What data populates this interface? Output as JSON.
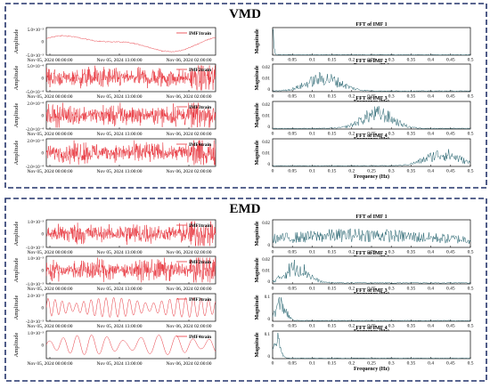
{
  "colors": {
    "frame": "#24346b",
    "signal": "#e8343c",
    "fft": "#1f5f6b",
    "axis": "#000000",
    "background": "#ffffff"
  },
  "sections": [
    {
      "title": "VMD",
      "subplots": [
        {
          "legend": "IMF1train",
          "exponent": "×10⁻³",
          "ytop": "5.0×10⁻³",
          "ymid": "0",
          "ybot": "-5.0×10⁻³",
          "fft_title": "FFT of IMF 1",
          "fft_yticks": []
        },
        {
          "legend": "IMF2train",
          "exponent": "",
          "ytop": "5.0×10⁻⁴",
          "ymid": "0",
          "ybot": "-5.0×10⁻⁴",
          "fft_title": "FFT of IMF 2",
          "fft_yticks": [
            "0.02",
            "0.01",
            "0"
          ]
        },
        {
          "legend": "IMF3train",
          "exponent": "",
          "ytop": "2.0×10⁻⁴",
          "ymid": "0",
          "ybot": "-2.0×10⁻⁴",
          "fft_title": "FFT of IMF 3",
          "fft_yticks": [
            "0.02",
            "0.01",
            "0"
          ]
        },
        {
          "legend": "IMF4train",
          "exponent": "",
          "ytop": "2.0×10⁻⁴",
          "ymid": "0",
          "ybot": "-2.0×10⁻⁴",
          "fft_title": "FFT of IMF 4",
          "fft_yticks": [
            "0.02",
            "0.01",
            "0"
          ]
        }
      ]
    },
    {
      "title": "EMD",
      "subplots": [
        {
          "legend": "IMF1train",
          "exponent": "",
          "ytop": "1.0×10⁻³",
          "ymid": "0",
          "ybot": "-1.0×10⁻³",
          "fft_title": "FFT of IMF 1",
          "fft_yticks": [
            "0.02",
            "0"
          ]
        },
        {
          "legend": "IMF2train",
          "exponent": "",
          "ytop": "1.0×10⁻³",
          "ymid": "0",
          "ybot": "-1.0×10⁻³",
          "fft_title": "FFT of IMF 2",
          "fft_yticks": [
            "0.02",
            "0.01",
            "0"
          ]
        },
        {
          "legend": "IMF3train",
          "exponent": "",
          "ytop": "2.0×10⁻³",
          "ymid": "0",
          "ybot": "-2.0×10⁻³",
          "fft_title": "FFT of IMF 3",
          "fft_yticks": [
            "0.1",
            "0"
          ]
        },
        {
          "legend": "IMF4train",
          "exponent": "",
          "ytop": "1.0×10⁻³",
          "ymid": "0",
          "ybot": "",
          "fft_title": "FFT of IMF 4",
          "fft_yticks": [
            "0.1",
            "0"
          ]
        }
      ]
    }
  ],
  "labels": {
    "amplitude": "Amplitude",
    "magnitude": "Magnitude",
    "frequency": "Frequency (Hz)",
    "time_ticks": [
      "Nov 05, 2024 00:00:00",
      "Nov 05, 2024 13:00:00",
      "Nov 06, 2024 02:00:00"
    ],
    "freq_ticks": [
      "0",
      "0.05",
      "0.1",
      "0.15",
      "0.2",
      "0.25",
      "0.3",
      "0.35",
      "0.4",
      "0.45",
      "0.5"
    ]
  },
  "chart_data": [
    {
      "type": "line",
      "title": "VMD",
      "panels": [
        {
          "name": "IMF1train",
          "kind": "time-series",
          "ylim": [
            -0.005,
            0.005
          ],
          "shape": "slow trend"
        },
        {
          "name": "FFT of IMF 1",
          "kind": "spectrum",
          "xlim": [
            0,
            0.5
          ],
          "xlabel": "Frequency (Hz)",
          "ylabel": "Magnitude",
          "peak_hz": 0.0
        },
        {
          "name": "IMF2train",
          "kind": "time-series",
          "ylim": [
            -0.0005,
            0.0005
          ]
        },
        {
          "name": "FFT of IMF 2",
          "kind": "spectrum",
          "xlim": [
            0,
            0.5
          ],
          "ylim": [
            0,
            0.02
          ],
          "peak_hz": 0.13
        },
        {
          "name": "IMF3train",
          "kind": "time-series",
          "ylim": [
            -0.0002,
            0.0002
          ]
        },
        {
          "name": "FFT of IMF 3",
          "kind": "spectrum",
          "xlim": [
            0,
            0.5
          ],
          "ylim": [
            0,
            0.02
          ],
          "peak_hz": 0.26
        },
        {
          "name": "IMF4train",
          "kind": "time-series",
          "ylim": [
            -0.0002,
            0.0002
          ]
        },
        {
          "name": "FFT of IMF 4",
          "kind": "spectrum",
          "xlim": [
            0,
            0.5
          ],
          "ylim": [
            0,
            0.02
          ],
          "peak_hz": 0.42
        }
      ]
    },
    {
      "type": "line",
      "title": "EMD",
      "panels": [
        {
          "name": "IMF1train",
          "kind": "time-series",
          "ylim": [
            -0.001,
            0.001
          ]
        },
        {
          "name": "FFT of IMF 1",
          "kind": "spectrum",
          "xlim": [
            0,
            0.5
          ],
          "ylim": [
            0,
            0.02
          ],
          "peak_hz": 0.25
        },
        {
          "name": "IMF2train",
          "kind": "time-series",
          "ylim": [
            -0.001,
            0.001
          ]
        },
        {
          "name": "FFT of IMF 2",
          "kind": "spectrum",
          "xlim": [
            0,
            0.5
          ],
          "ylim": [
            0,
            0.02
          ],
          "peak_hz": 0.06
        },
        {
          "name": "IMF3train",
          "kind": "time-series",
          "ylim": [
            -0.002,
            0.002
          ]
        },
        {
          "name": "FFT of IMF 3",
          "kind": "spectrum",
          "xlim": [
            0,
            0.5
          ],
          "ylim": [
            0,
            0.1
          ],
          "peak_hz": 0.02
        },
        {
          "name": "IMF4train",
          "kind": "time-series",
          "ylim": [
            -0.001,
            0.001
          ]
        },
        {
          "name": "FFT of IMF 4",
          "kind": "spectrum",
          "xlim": [
            0,
            0.5
          ],
          "ylim": [
            0,
            0.1
          ],
          "peak_hz": 0.01
        }
      ]
    }
  ]
}
